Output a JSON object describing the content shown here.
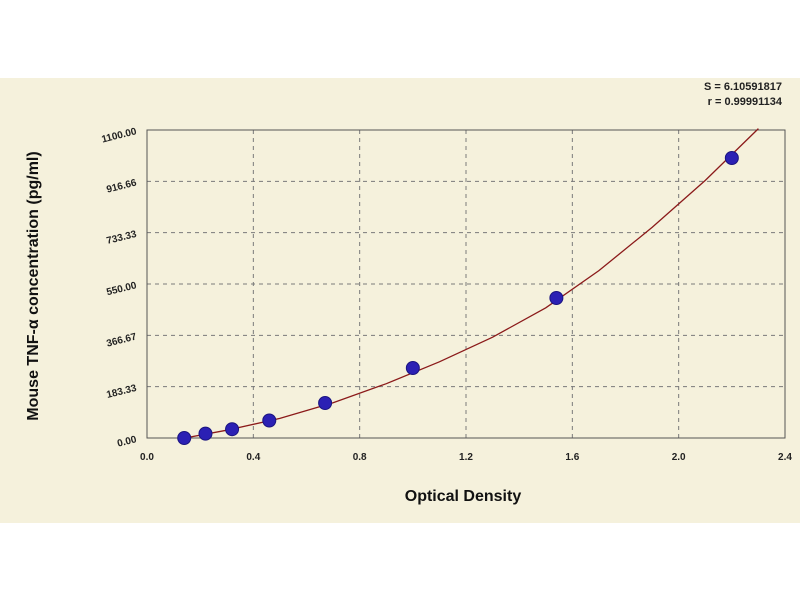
{
  "chart_data": {
    "type": "scatter",
    "xlabel": "Optical Density",
    "ylabel": "Mouse TNF-α concentration (pg/ml)",
    "xlim": [
      0.0,
      2.4
    ],
    "ylim": [
      0.0,
      1100.0
    ],
    "x_ticks": [
      "0.0",
      "0.4",
      "0.8",
      "1.2",
      "1.6",
      "2.0",
      "2.4"
    ],
    "y_ticks": [
      "0.00",
      "183.33",
      "366.67",
      "550.00",
      "733.33",
      "916.66",
      "1100.00"
    ],
    "grid": true,
    "fit_stats": [
      "S = 6.10591817",
      "r = 0.99991134"
    ],
    "points": [
      {
        "x": 0.14,
        "y": 0
      },
      {
        "x": 0.22,
        "y": 15.6
      },
      {
        "x": 0.32,
        "y": 31.3
      },
      {
        "x": 0.46,
        "y": 62.5
      },
      {
        "x": 0.67,
        "y": 125
      },
      {
        "x": 1.0,
        "y": 250
      },
      {
        "x": 1.54,
        "y": 500
      },
      {
        "x": 2.2,
        "y": 1000
      }
    ],
    "curve": {
      "x": [
        0.12,
        0.3,
        0.5,
        0.7,
        0.9,
        1.1,
        1.3,
        1.5,
        1.7,
        1.9,
        2.1,
        2.3
      ],
      "y": [
        -4,
        28,
        70,
        126,
        194,
        272,
        360,
        465,
        598,
        752,
        920,
        1105
      ]
    },
    "colors": {
      "point": "#2b20b4",
      "curve": "#8b1a1a",
      "grid": "#7a7a7a",
      "background": "#f5f1dc"
    }
  }
}
